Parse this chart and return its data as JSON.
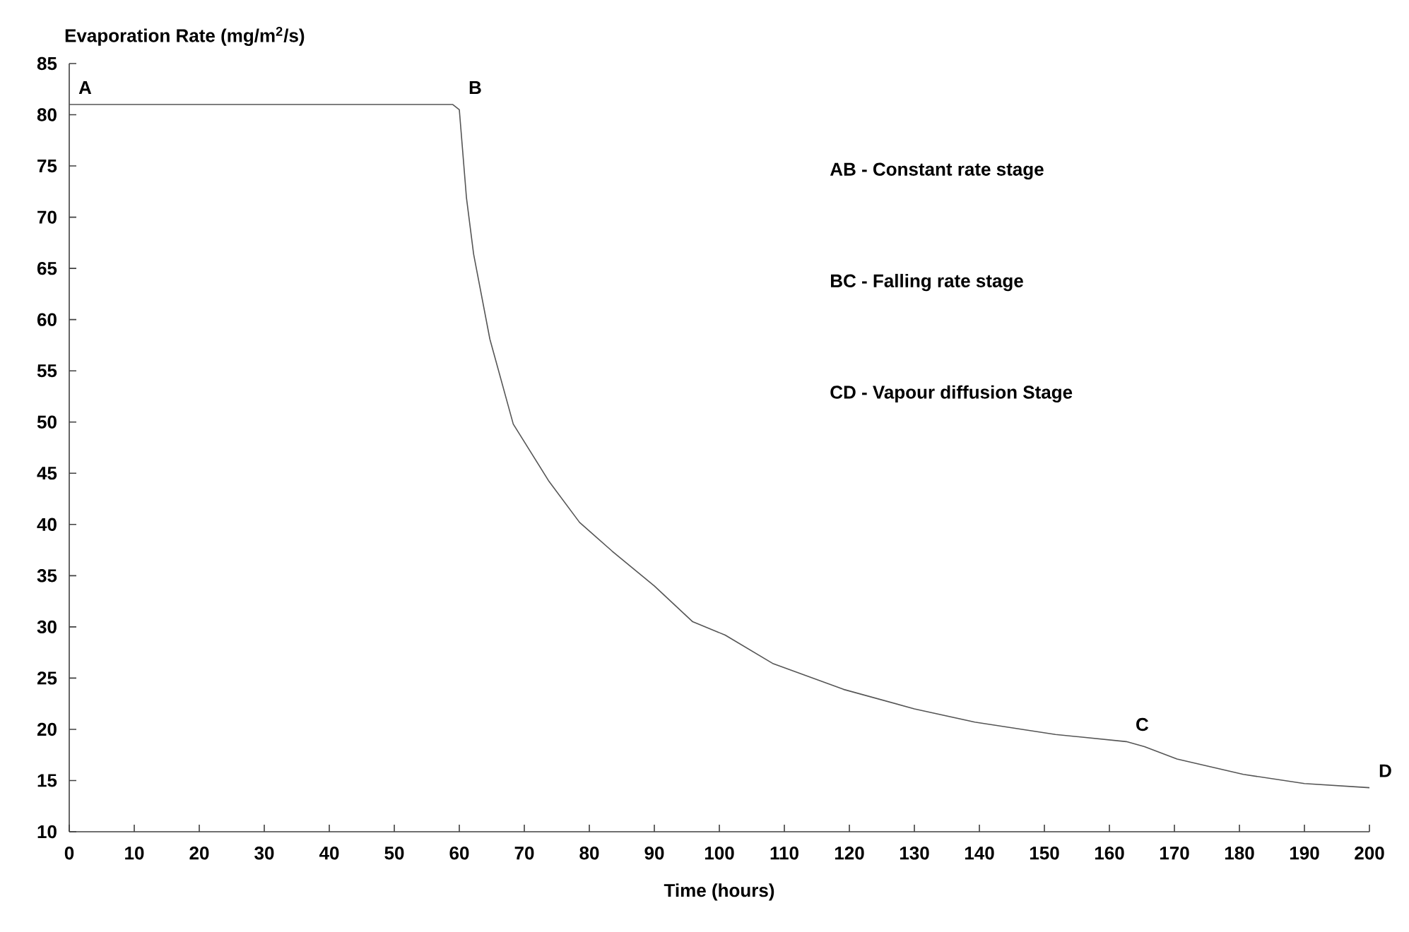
{
  "chart_data": {
    "type": "line",
    "xlabel": "Time (hours)",
    "ylabel": "Evaporation Rate (mg/m$^{2}$/s)",
    "x": [
      0,
      20,
      40,
      59,
      60,
      61.1,
      62.2,
      64.7,
      68.3,
      73.7,
      78.5,
      83.5,
      90,
      95.9,
      100.9,
      108.3,
      119.1,
      130,
      139.3,
      151.7,
      162.6,
      165.4,
      170.4,
      180.6,
      190,
      200
    ],
    "values": [
      81,
      81,
      81,
      81,
      80.5,
      71.9,
      66.4,
      58.1,
      49.8,
      44.3,
      40.2,
      37.4,
      34,
      30.5,
      29.2,
      26.4,
      23.9,
      22.0,
      20.7,
      19.5,
      18.8,
      18.3,
      17.1,
      15.6,
      14.7,
      14.3
    ],
    "color": "#555555",
    "xlim": [
      0,
      200
    ],
    "ylim": [
      10,
      85
    ],
    "xticks": [
      0,
      10,
      20,
      30,
      40,
      50,
      60,
      70,
      80,
      90,
      100,
      110,
      120,
      130,
      140,
      150,
      160,
      170,
      180,
      190,
      200
    ],
    "yticks": [
      10,
      15,
      20,
      25,
      30,
      35,
      40,
      45,
      50,
      55,
      60,
      65,
      70,
      75,
      80,
      85
    ],
    "grid": false,
    "annotations": [
      {
        "text": "A",
        "x": 0,
        "y": 81
      },
      {
        "text": "B",
        "x": 60,
        "y": 81
      },
      {
        "text": "C",
        "x": 162.6,
        "y": 18.8
      },
      {
        "text": "D",
        "x": 200,
        "y": 14.3
      },
      "AB - Constant rate stage",
      "BC - Falling rate stage",
      "CD - Vapour diffusion Stage"
    ]
  }
}
